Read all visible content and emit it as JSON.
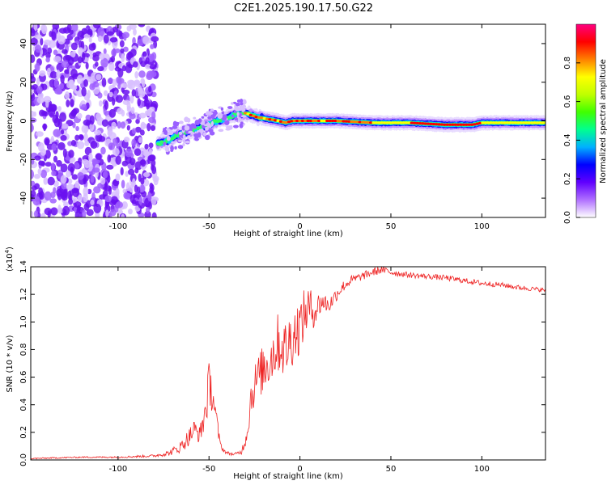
{
  "title": "C2E1.2025.190.17.50.G22",
  "chart_data": [
    {
      "type": "heatmap",
      "xlabel": "Height of straight line (km)",
      "ylabel": "Frequency (Hz)",
      "xlim": [
        -148,
        135
      ],
      "ylim": [
        -50,
        50
      ],
      "xticks": [
        -100,
        -50,
        0,
        50,
        100
      ],
      "yticks": [
        -40,
        -20,
        0,
        20,
        40
      ],
      "colorbar": {
        "label": "Normalized spectral amplitude",
        "range": [
          0,
          1
        ],
        "ticks": [
          "0.0",
          "0.2",
          "0.4",
          "0.6",
          "0.8"
        ],
        "colors": [
          "#ffffff",
          "#b070ff",
          "#6000ff",
          "#0000ff",
          "#00b0ff",
          "#00ff90",
          "#40ff00",
          "#c0ff00",
          "#ffff00",
          "#ff8000",
          "#ff0000",
          "#ff0080"
        ]
      },
      "noise_region_x": [
        -148,
        -79
      ],
      "ridge": {
        "x": [
          -78,
          -72,
          -66,
          -60,
          -54,
          -48,
          -42,
          -36,
          -30,
          -24,
          -18,
          -12,
          -8,
          -4,
          0,
          10,
          20,
          40,
          60,
          80,
          95,
          100,
          115,
          135
        ],
        "y": [
          -12,
          -10,
          -7,
          -5,
          -3,
          -1,
          1,
          3,
          4,
          2,
          1,
          0,
          -1,
          0,
          0,
          0,
          0,
          -1,
          -1,
          -2,
          -2,
          -1,
          -1,
          -1
        ]
      }
    },
    {
      "type": "line",
      "xlabel": "Height of straight line (km)",
      "ylabel": "SNR (10 * v/v)",
      "scale_label": "(x10",
      "scale_exponent": "4",
      "xlim": [
        -148,
        135
      ],
      "ylim": [
        0,
        1.4
      ],
      "xticks": [
        -100,
        -50,
        0,
        50,
        100
      ],
      "yticks": [
        "0.0",
        "0.2",
        "0.4",
        "0.6",
        "0.8",
        "1.0",
        "1.2",
        "1.4"
      ],
      "series": [
        {
          "color": "#ee2222",
          "x": [
            -148,
            -120,
            -100,
            -80,
            -72,
            -66,
            -62,
            -58,
            -55,
            -52,
            -50,
            -48,
            -46,
            -44,
            -42,
            -40,
            -36,
            -32,
            -29,
            -27,
            -24,
            -20,
            -16,
            -12,
            -8,
            -4,
            0,
            4,
            8,
            12,
            16,
            20,
            24,
            28,
            34,
            40,
            45,
            50,
            60,
            70,
            80,
            90,
            100,
            110,
            120,
            135
          ],
          "y": [
            0.01,
            0.02,
            0.02,
            0.03,
            0.05,
            0.09,
            0.15,
            0.22,
            0.18,
            0.35,
            0.55,
            0.48,
            0.3,
            0.12,
            0.07,
            0.05,
            0.04,
            0.06,
            0.2,
            0.45,
            0.58,
            0.66,
            0.74,
            0.85,
            0.8,
            0.9,
            0.97,
            1.1,
            1.08,
            1.15,
            1.12,
            1.2,
            1.26,
            1.3,
            1.33,
            1.36,
            1.38,
            1.36,
            1.34,
            1.33,
            1.32,
            1.3,
            1.28,
            1.27,
            1.25,
            1.23
          ],
          "noise": [
            0.005,
            0.005,
            0.006,
            0.01,
            0.02,
            0.04,
            0.06,
            0.08,
            0.06,
            0.15,
            0.16,
            0.14,
            0.08,
            0.03,
            0.015,
            0.012,
            0.01,
            0.02,
            0.08,
            0.14,
            0.16,
            0.18,
            0.2,
            0.22,
            0.22,
            0.22,
            0.2,
            0.18,
            0.12,
            0.08,
            0.06,
            0.05,
            0.04,
            0.035,
            0.03,
            0.03,
            0.03,
            0.025,
            0.02,
            0.02,
            0.02,
            0.02,
            0.02,
            0.018,
            0.018,
            0.015
          ]
        }
      ]
    }
  ]
}
